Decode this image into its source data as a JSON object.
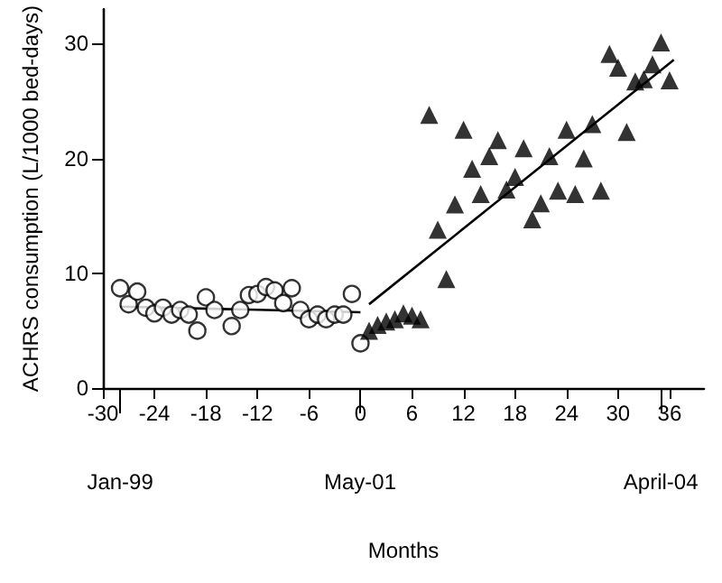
{
  "chart_data": {
    "type": "scatter",
    "xlabel": "Months",
    "ylabel": "ACHRS consumption (L/1000 bed-days)",
    "xlim": [
      -30,
      40
    ],
    "xticks": [
      -30,
      -24,
      -18,
      -12,
      -6,
      0,
      6,
      12,
      18,
      24,
      30,
      36
    ],
    "x2lim": [
      "1998-11",
      "2004-09"
    ],
    "x2ticks": [
      {
        "value": "1999-01",
        "label": "Jan-99"
      },
      {
        "value": "2001-05",
        "label": "May-01"
      },
      {
        "value": "2004-04",
        "label": "April-04"
      }
    ],
    "ylim": [
      0,
      33
    ],
    "yticks": [
      0,
      10,
      20,
      30
    ],
    "grid": false,
    "series": [
      {
        "marker": "circle",
        "color": "#000000",
        "x": [
          -28,
          -27,
          -26,
          -25,
          -24,
          -23,
          -22,
          -21,
          -20,
          -19,
          -18,
          -17,
          -15,
          -14,
          -13,
          -12,
          -11,
          -10,
          -9,
          -8,
          -7,
          -6,
          -5,
          -4,
          -3,
          -2,
          -1,
          0
        ],
        "values": [
          8.7,
          7.3,
          8.4,
          7.0,
          6.5,
          7.0,
          6.4,
          6.8,
          6.4,
          5.0,
          7.9,
          6.8,
          5.4,
          6.8,
          8.1,
          8.2,
          8.8,
          8.5,
          7.4,
          8.7,
          6.8,
          6.0,
          6.4,
          6.0,
          6.4,
          6.4,
          8.2,
          3.9
        ]
      },
      {
        "marker": "triangle",
        "color": "#000000",
        "x": [
          1,
          2,
          3,
          4,
          5,
          6,
          7,
          8,
          9,
          10,
          11,
          12,
          13,
          14,
          15,
          16,
          17,
          18,
          19,
          20,
          21,
          22,
          23,
          24,
          25,
          26,
          27,
          28,
          29,
          30,
          31,
          32,
          33,
          34,
          35,
          36
        ],
        "values": [
          5.0,
          5.5,
          5.8,
          6.0,
          6.5,
          6.3,
          6.0,
          23.8,
          13.8,
          9.5,
          16.0,
          22.5,
          19.1,
          16.9,
          20.2,
          21.6,
          17.3,
          18.4,
          20.9,
          14.7,
          16.1,
          20.2,
          17.2,
          22.5,
          16.9,
          20.0,
          23.0,
          17.2,
          29.1,
          27.9,
          22.3,
          26.7,
          26.9,
          28.2,
          30.1,
          26.8
        ]
      },
      {
        "type": "line",
        "marker": "none",
        "color": "#000000",
        "x": [
          -28,
          0
        ],
        "values": [
          7.1,
          6.6
        ]
      },
      {
        "type": "line",
        "marker": "none",
        "color": "#000000",
        "x": [
          1,
          36.5
        ],
        "values": [
          7.3,
          28.6
        ]
      }
    ]
  }
}
